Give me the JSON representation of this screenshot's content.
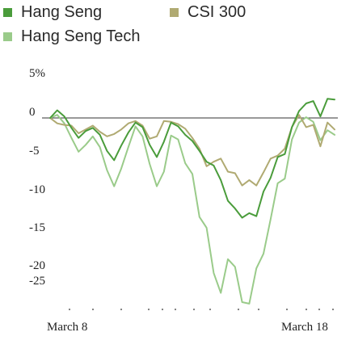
{
  "chart_data": {
    "type": "line",
    "title": "",
    "xlabel": "",
    "ylabel": "",
    "y_unit": "%",
    "ylim": [
      -25,
      5
    ],
    "y_ticks": [
      5,
      0,
      -5,
      -10,
      -15,
      -20,
      -25
    ],
    "y_tick_labels": [
      "5%",
      "0",
      "-5",
      "-10",
      "-15",
      "-20",
      "-25"
    ],
    "x_tick_labels": [
      "March 8",
      "March 18"
    ],
    "grid": false,
    "legend": "top-left",
    "series": [
      {
        "name": "Hang Seng",
        "color": "#4a9c3b",
        "values": [
          0,
          1.0,
          0.2,
          -1.3,
          -2.6,
          -1.7,
          -1.3,
          -2.2,
          -4.3,
          -5.5,
          -3.6,
          -1.9,
          -0.6,
          -1.2,
          -3.5,
          -5.1,
          -3.1,
          -0.6,
          -1.1,
          -2.2,
          -3.0,
          -4.3,
          -5.7,
          -6.2,
          -8.1,
          -10.8,
          -11.8,
          -13.0,
          -12.4,
          -12.8,
          -9.6,
          -7.8,
          -5.1,
          -4.7,
          -1.2,
          0.9,
          1.9,
          2.2,
          0.2,
          2.5,
          2.4
        ]
      },
      {
        "name": "CSI 300",
        "color": "#b0aa72",
        "values": [
          0,
          -0.7,
          -0.9,
          -1.0,
          -2.0,
          -1.5,
          -1.0,
          -1.8,
          -2.4,
          -2.1,
          -1.5,
          -0.7,
          -0.4,
          -1.0,
          -2.7,
          -2.4,
          -0.4,
          -0.5,
          -0.8,
          -1.4,
          -2.6,
          -4.0,
          -6.3,
          -5.7,
          -5.3,
          -7.0,
          -7.2,
          -8.8,
          -8.1,
          -8.8,
          -7.1,
          -5.3,
          -4.9,
          -4.0,
          -1.2,
          0.4,
          -1.2,
          -0.9,
          -3.7,
          -0.6,
          -1.5
        ]
      },
      {
        "name": "Hang Seng Tech",
        "color": "#9acb8a",
        "values": [
          0,
          0.4,
          -0.7,
          -2.6,
          -4.4,
          -3.5,
          -2.4,
          -3.8,
          -6.8,
          -8.9,
          -6.6,
          -3.8,
          -1.1,
          -2.4,
          -6.0,
          -8.9,
          -7.0,
          -2.3,
          -2.8,
          -5.9,
          -7.3,
          -12.9,
          -14.3,
          -20.2,
          -22.8,
          -18.4,
          -19.4,
          -24.0,
          -24.2,
          -19.6,
          -17.7,
          -13.2,
          -8.5,
          -7.9,
          -2.8,
          -0.6,
          0.1,
          -0.5,
          -2.9,
          -1.6,
          -2.2
        ]
      }
    ]
  }
}
